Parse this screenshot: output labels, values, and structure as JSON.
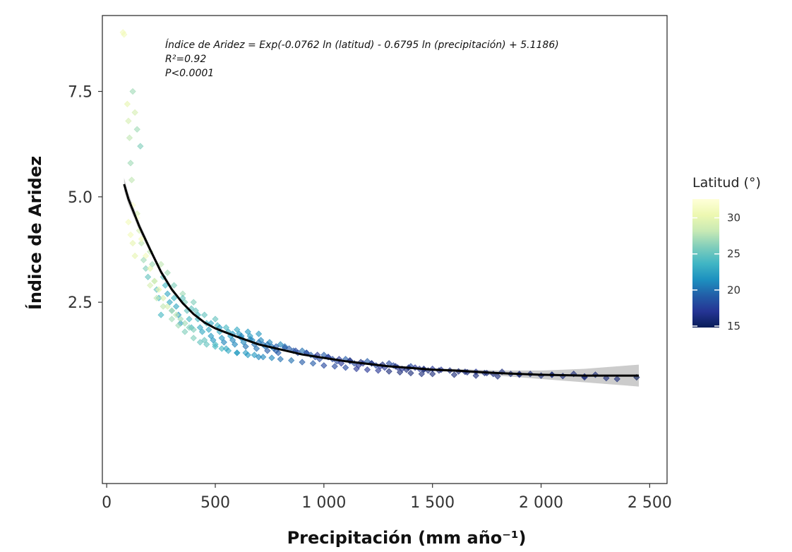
{
  "chart_data": {
    "type": "scatter",
    "xlabel": "Precipitación (mm año⁻¹)",
    "ylabel": "Índice de Aridez",
    "xlim": [
      -20,
      2580
    ],
    "ylim": [
      -1.8,
      9.3
    ],
    "x_ticks": [
      0,
      500,
      1000,
      1500,
      2000,
      2500
    ],
    "x_tick_labels": [
      "0",
      "500",
      "1 000",
      "1 500",
      "2 000",
      "2 500"
    ],
    "y_ticks": [
      2.5,
      5.0,
      7.5
    ],
    "y_tick_labels": [
      "2.5",
      "5.0",
      "7.5"
    ],
    "grid": false,
    "annotation": {
      "equation": "Índice de Aridez = Exp(-0.0762 ln (latitud) - 0.6795 ln (precipitación) + 5.1186)",
      "r2": "R²=0.92",
      "p": "P<0.0001"
    },
    "legend": {
      "title": "Latitud (°)",
      "position": "right",
      "ticks": [
        30,
        25,
        20,
        15
      ],
      "tick_labels": [
        "30",
        "25",
        "20",
        "15"
      ],
      "range": [
        14.8,
        32.6
      ],
      "colors": [
        "#081d58",
        "#253494",
        "#225ea8",
        "#1d91c0",
        "#41b6c4",
        "#7fcdbb",
        "#c7e9b4",
        "#edf8b1",
        "#ffffd9"
      ]
    },
    "fit_line": {
      "x": [
        80,
        100,
        150,
        200,
        250,
        300,
        350,
        400,
        450,
        500,
        550,
        600,
        700,
        800,
        900,
        1000,
        1100,
        1200,
        1300,
        1400,
        1500,
        1600,
        1700,
        1800,
        1900,
        2000,
        2100,
        2200,
        2300,
        2450
      ],
      "y": [
        5.3,
        4.95,
        4.3,
        3.75,
        3.22,
        2.8,
        2.48,
        2.22,
        2.02,
        1.88,
        1.78,
        1.68,
        1.5,
        1.38,
        1.26,
        1.18,
        1.1,
        1.04,
        0.98,
        0.94,
        0.9,
        0.88,
        0.85,
        0.82,
        0.8,
        0.78,
        0.77,
        0.76,
        0.76,
        0.76
      ],
      "ci_lower": [
        5.15,
        4.82,
        4.2,
        3.68,
        3.16,
        2.75,
        2.44,
        2.19,
        2.0,
        1.86,
        1.76,
        1.66,
        1.49,
        1.37,
        1.25,
        1.17,
        1.09,
        1.03,
        0.96,
        0.92,
        0.87,
        0.84,
        0.8,
        0.76,
        0.72,
        0.68,
        0.64,
        0.6,
        0.56,
        0.5
      ],
      "ci_upper": [
        5.45,
        5.08,
        4.4,
        3.82,
        3.28,
        2.85,
        2.52,
        2.25,
        2.04,
        1.9,
        1.8,
        1.7,
        1.51,
        1.39,
        1.27,
        1.19,
        1.11,
        1.05,
        1.0,
        0.96,
        0.93,
        0.92,
        0.9,
        0.88,
        0.88,
        0.88,
        0.9,
        0.92,
        0.96,
        1.02
      ]
    },
    "points": {
      "x": [
        75,
        80,
        95,
        100,
        105,
        110,
        115,
        120,
        130,
        140,
        155,
        100,
        110,
        120,
        130,
        140,
        150,
        160,
        170,
        180,
        190,
        200,
        210,
        220,
        230,
        240,
        250,
        260,
        270,
        280,
        290,
        300,
        310,
        320,
        330,
        340,
        350,
        360,
        370,
        380,
        390,
        400,
        410,
        420,
        430,
        440,
        450,
        460,
        470,
        480,
        490,
        500,
        510,
        520,
        530,
        540,
        550,
        560,
        570,
        580,
        590,
        600,
        610,
        620,
        630,
        640,
        650,
        660,
        670,
        680,
        690,
        700,
        710,
        720,
        730,
        740,
        750,
        760,
        770,
        780,
        790,
        800,
        820,
        840,
        860,
        880,
        900,
        920,
        940,
        960,
        980,
        1000,
        1020,
        1040,
        1060,
        1080,
        1100,
        1120,
        1140,
        1160,
        1180,
        1200,
        1220,
        1240,
        1260,
        1280,
        1300,
        1320,
        1340,
        1360,
        1380,
        1400,
        1420,
        1440,
        1460,
        1480,
        1500,
        1540,
        1580,
        1620,
        1660,
        1700,
        1740,
        1780,
        1820,
        1860,
        1900,
        1950,
        2000,
        2050,
        2100,
        2150,
        2200,
        2250,
        2300,
        2350,
        2440,
        200,
        230,
        260,
        300,
        330,
        360,
        400,
        430,
        460,
        500,
        530,
        560,
        600,
        640,
        680,
        720,
        760,
        800,
        850,
        900,
        950,
        1000,
        1050,
        1100,
        1150,
        1200,
        1250,
        1300,
        1350,
        1400,
        1450,
        1500,
        1600,
        1700,
        1800,
        250,
        280,
        310,
        350,
        390,
        420,
        480,
        520,
        580,
        620,
        660,
        700,
        740,
        780,
        820,
        870,
        920,
        970,
        1020,
        1070,
        1120,
        1170,
        1220,
        1270,
        1330,
        1390,
        1460,
        1530,
        1650,
        1750,
        1900,
        2050,
        2200,
        120,
        140,
        160,
        180,
        200,
        220,
        240,
        260,
        280,
        300,
        320,
        340,
        360,
        380,
        400,
        450,
        500,
        550,
        600,
        650,
        700
      ],
      "y": [
        8.9,
        8.85,
        7.2,
        6.8,
        6.4,
        5.8,
        5.4,
        7.5,
        7.0,
        6.6,
        6.2,
        4.4,
        4.1,
        3.9,
        3.6,
        4.6,
        4.2,
        3.9,
        3.5,
        3.3,
        3.1,
        3.7,
        3.4,
        3.0,
        2.8,
        2.6,
        2.2,
        3.1,
        2.9,
        2.7,
        2.5,
        2.3,
        2.6,
        2.4,
        2.2,
        2.0,
        2.7,
        2.5,
        2.3,
        2.1,
        1.9,
        2.5,
        2.3,
        2.1,
        1.9,
        1.8,
        2.2,
        2.0,
        1.85,
        1.7,
        1.6,
        2.1,
        1.95,
        1.8,
        1.65,
        1.55,
        1.9,
        1.8,
        1.7,
        1.6,
        1.5,
        1.85,
        1.75,
        1.65,
        1.55,
        1.45,
        1.8,
        1.7,
        1.6,
        1.5,
        1.4,
        1.75,
        1.6,
        1.5,
        1.45,
        1.35,
        1.55,
        1.45,
        1.4,
        1.35,
        1.3,
        1.5,
        1.45,
        1.4,
        1.35,
        1.3,
        1.35,
        1.3,
        1.25,
        1.2,
        1.15,
        1.25,
        1.2,
        1.15,
        1.1,
        1.05,
        1.15,
        1.1,
        1.05,
        1.0,
        1.05,
        1.1,
        1.05,
        1.0,
        0.98,
        0.95,
        1.05,
        1.0,
        0.95,
        0.92,
        0.9,
        0.98,
        0.95,
        0.92,
        0.9,
        0.88,
        0.92,
        0.9,
        0.88,
        0.86,
        0.84,
        0.85,
        0.82,
        0.8,
        0.85,
        0.8,
        0.78,
        0.8,
        0.76,
        0.78,
        0.75,
        0.8,
        0.72,
        0.78,
        0.7,
        0.68,
        0.72,
        2.9,
        2.6,
        2.4,
        2.1,
        1.95,
        1.8,
        1.65,
        1.55,
        1.5,
        1.45,
        1.4,
        1.35,
        1.3,
        1.3,
        1.25,
        1.2,
        1.18,
        1.15,
        1.12,
        1.08,
        1.05,
        1.0,
        0.98,
        0.95,
        0.92,
        0.9,
        0.88,
        0.86,
        0.84,
        0.82,
        0.8,
        0.8,
        0.78,
        0.76,
        0.74,
        3.4,
        3.2,
        2.9,
        2.6,
        2.35,
        2.2,
        2.0,
        1.9,
        1.75,
        1.7,
        1.62,
        1.55,
        1.5,
        1.45,
        1.42,
        1.35,
        1.3,
        1.25,
        1.2,
        1.15,
        1.12,
        1.08,
        1.05,
        1.02,
        0.98,
        0.95,
        0.92,
        0.88,
        0.85,
        0.82,
        0.8,
        0.78,
        0.74,
        4.8,
        4.5,
        4.0,
        3.6,
        3.3,
        3.0,
        2.8,
        2.6,
        2.4,
        2.3,
        2.2,
        2.1,
        2.0,
        1.9,
        1.85,
        1.6,
        1.5,
        1.4,
        1.3,
        1.25,
        1.2
      ],
      "lat": [
        31,
        31,
        30,
        29,
        28,
        27,
        28,
        27,
        29,
        27,
        26,
        31,
        31,
        30,
        30,
        29,
        29,
        28,
        27,
        26,
        25,
        28,
        27,
        26,
        25,
        24,
        24,
        25,
        24,
        23,
        23,
        22,
        24,
        23,
        22,
        22,
        27,
        26,
        25,
        24,
        24,
        26,
        25,
        24,
        23,
        23,
        25,
        24,
        23,
        22,
        22,
        25,
        24,
        23,
        22,
        21,
        24,
        23,
        22,
        21,
        21,
        23,
        22,
        21,
        21,
        20,
        22,
        22,
        21,
        20,
        20,
        22,
        21,
        20,
        20,
        19,
        21,
        20,
        20,
        19,
        19,
        21,
        20,
        19,
        19,
        18,
        20,
        19,
        19,
        18,
        18,
        19,
        19,
        18,
        18,
        17,
        19,
        18,
        18,
        17,
        17,
        19,
        18,
        18,
        17,
        17,
        18,
        18,
        17,
        17,
        16,
        18,
        17,
        17,
        16,
        16,
        17,
        17,
        16,
        16,
        16,
        17,
        16,
        16,
        16,
        16,
        16,
        16,
        16,
        16,
        16,
        16,
        16,
        16,
        16,
        16,
        15,
        29,
        28,
        28,
        27,
        27,
        26,
        26,
        25,
        25,
        24,
        24,
        23,
        23,
        22,
        22,
        21,
        21,
        20,
        20,
        19,
        19,
        18,
        18,
        18,
        17,
        17,
        17,
        16,
        16,
        16,
        16,
        16,
        16,
        16,
        16,
        28,
        27,
        26,
        25,
        25,
        24,
        23,
        22,
        22,
        21,
        21,
        20,
        20,
        19,
        19,
        18,
        18,
        17,
        17,
        17,
        16,
        16,
        16,
        16,
        16,
        16,
        16,
        16,
        16,
        16,
        16,
        16,
        16,
        32,
        32,
        31,
        31,
        30,
        30,
        30,
        29,
        29,
        28,
        28,
        27,
        27,
        26,
        26,
        25,
        24,
        23,
        22,
        22,
        21
      ]
    }
  }
}
